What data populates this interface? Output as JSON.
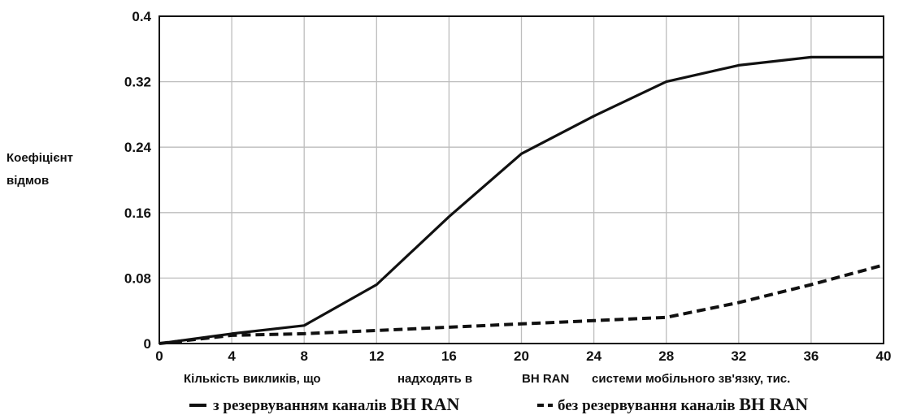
{
  "chart_data": {
    "type": "line",
    "title": "",
    "ylabel_lines": [
      "Коефіцієнт",
      "відмов"
    ],
    "xlabel_parts": [
      "Кількість викликів, що",
      "надходять в",
      "ВН RAN",
      "системи мобільного зв'язку, тис."
    ],
    "xlim": [
      0,
      40
    ],
    "ylim": [
      0,
      0.4
    ],
    "xticks": [
      0,
      4,
      8,
      12,
      16,
      20,
      24,
      28,
      32,
      36,
      40
    ],
    "yticks": [
      {
        "value": 0,
        "label": "0"
      },
      {
        "value": 0.08,
        "label": "0.08"
      },
      {
        "value": 0.16,
        "label": "0.16"
      },
      {
        "value": 0.24,
        "label": "0.24"
      },
      {
        "value": 0.32,
        "label": "0.32"
      },
      {
        "value": 0.4,
        "label": "0.4"
      }
    ],
    "grid": true,
    "legend_position": "bottom",
    "series": [
      {
        "name_prefix": "з резервуванням каналів",
        "name_suffix": "BH RAN",
        "style": "solid",
        "x": [
          0,
          4,
          8,
          12,
          16,
          20,
          24,
          28,
          32,
          36,
          40
        ],
        "y": [
          0.0,
          0.012,
          0.022,
          0.072,
          0.155,
          0.232,
          0.278,
          0.32,
          0.34,
          0.35,
          0.35
        ]
      },
      {
        "name_prefix": "без резервування каналів",
        "name_suffix": "BH RAN",
        "style": "dashed",
        "x": [
          0,
          4,
          8,
          12,
          16,
          20,
          24,
          28,
          32,
          36,
          40
        ],
        "y": [
          0.0,
          0.01,
          0.012,
          0.016,
          0.02,
          0.024,
          0.028,
          0.032,
          0.05,
          0.072,
          0.096
        ]
      }
    ],
    "colors": {
      "line": "#111111",
      "grid": "#bdbdbd",
      "frame": "#111111"
    }
  }
}
